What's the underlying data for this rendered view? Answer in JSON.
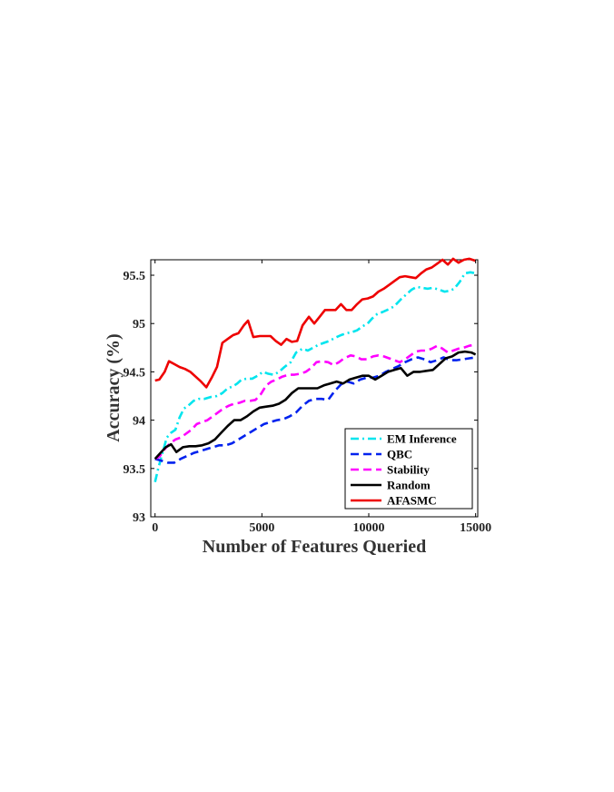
{
  "chart_data": {
    "type": "line",
    "title": "",
    "xlabel": "Number of Features Queried",
    "ylabel": "Accuracy (%)",
    "xlim": [
      -200,
      15100
    ],
    "ylim": [
      93,
      95.66
    ],
    "xticks": [
      0,
      5000,
      10000,
      15000
    ],
    "xtick_labels": [
      "0",
      "5000",
      "10000",
      "15000"
    ],
    "yticks": [
      93,
      93.5,
      94,
      94.5,
      95,
      95.5
    ],
    "ytick_labels": [
      "93",
      "93.5",
      "94",
      "94.5",
      "95",
      "95.5"
    ],
    "grid": false,
    "legend_position": "bottom-right",
    "series": [
      {
        "name": "EM Inference",
        "color": "#00e5ee",
        "dash": "dashdot",
        "x": [
          0,
          150,
          350,
          550,
          750,
          950,
          1150,
          1350,
          1550,
          1800,
          2050,
          2300,
          2600,
          2900,
          3150,
          3400,
          3650,
          3850,
          4050,
          4300,
          4550,
          4800,
          5050,
          5300,
          5550,
          5800,
          6050,
          6350,
          6600,
          6900,
          7150,
          7400,
          7650,
          7900,
          8150,
          8400,
          8700,
          8950,
          9200,
          9450,
          9700,
          9950,
          10150,
          10400,
          10650,
          10950,
          11200,
          11500,
          11750,
          12000,
          12250,
          12500,
          12750,
          13000,
          13300,
          13550,
          13800,
          14000,
          14250,
          14500,
          14750,
          15000
        ],
        "values": [
          93.36,
          93.5,
          93.66,
          93.82,
          93.87,
          93.9,
          94.03,
          94.12,
          94.15,
          94.2,
          94.22,
          94.22,
          94.24,
          94.25,
          94.28,
          94.33,
          94.35,
          94.38,
          94.42,
          94.43,
          94.43,
          94.46,
          94.5,
          94.48,
          94.47,
          94.5,
          94.55,
          94.6,
          94.7,
          94.74,
          94.72,
          94.75,
          94.78,
          94.8,
          94.82,
          94.85,
          94.88,
          94.9,
          94.91,
          94.93,
          94.97,
          95.0,
          95.05,
          95.1,
          95.12,
          95.15,
          95.18,
          95.25,
          95.3,
          95.35,
          95.38,
          95.37,
          95.36,
          95.37,
          95.35,
          95.33,
          95.34,
          95.36,
          95.43,
          95.52,
          95.53,
          95.52
        ]
      },
      {
        "name": "QBC",
        "color": "#0022ee",
        "dash": "dash",
        "x": [
          0,
          300,
          600,
          900,
          1200,
          1500,
          1800,
          2100,
          2400,
          2700,
          3000,
          3300,
          3600,
          3900,
          4200,
          4500,
          4800,
          5100,
          5400,
          5700,
          6000,
          6300,
          6600,
          6900,
          7200,
          7500,
          7800,
          8100,
          8400,
          8700,
          9000,
          9300,
          9600,
          9900,
          10200,
          10500,
          10800,
          11100,
          11400,
          11700,
          12000,
          12300,
          12600,
          12900,
          13200,
          13500,
          13800,
          14100,
          14400,
          14700,
          15000
        ],
        "values": [
          93.6,
          93.58,
          93.56,
          93.56,
          93.6,
          93.63,
          93.66,
          93.68,
          93.7,
          93.72,
          93.74,
          93.74,
          93.76,
          93.8,
          93.84,
          93.88,
          93.92,
          93.96,
          93.98,
          94.0,
          94.01,
          94.04,
          94.08,
          94.15,
          94.2,
          94.22,
          94.22,
          94.21,
          94.3,
          94.37,
          94.4,
          94.38,
          94.42,
          94.44,
          94.44,
          94.46,
          94.5,
          94.53,
          94.56,
          94.6,
          94.63,
          94.65,
          94.63,
          94.6,
          94.62,
          94.65,
          94.62,
          94.62,
          94.63,
          94.64,
          94.65
        ]
      },
      {
        "name": "Stability",
        "color": "#ff00ff",
        "dash": "dash",
        "x": [
          0,
          200,
          450,
          700,
          950,
          1200,
          1450,
          1700,
          1950,
          2200,
          2450,
          2700,
          2950,
          3200,
          3450,
          3700,
          3950,
          4200,
          4450,
          4700,
          4950,
          5200,
          5450,
          5700,
          5950,
          6250,
          6500,
          6800,
          7050,
          7300,
          7550,
          7800,
          8100,
          8350,
          8600,
          8850,
          9150,
          9400,
          9650,
          9900,
          10200,
          10450,
          10700,
          10950,
          11200,
          11450,
          11700,
          11950,
          12200,
          12450,
          12700,
          12950,
          13200,
          13450,
          13700,
          13950,
          14200,
          14450,
          14700,
          14950
        ],
        "values": [
          93.6,
          93.62,
          93.7,
          93.76,
          93.8,
          93.82,
          93.86,
          93.9,
          93.96,
          93.98,
          94.0,
          94.04,
          94.08,
          94.12,
          94.15,
          94.17,
          94.18,
          94.2,
          94.2,
          94.21,
          94.27,
          94.36,
          94.4,
          94.42,
          94.45,
          94.47,
          94.47,
          94.48,
          94.5,
          94.54,
          94.6,
          94.61,
          94.6,
          94.57,
          94.6,
          94.64,
          94.67,
          94.66,
          94.63,
          94.63,
          94.66,
          94.67,
          94.66,
          94.64,
          94.62,
          94.6,
          94.63,
          94.67,
          94.71,
          94.72,
          94.72,
          94.74,
          94.77,
          94.74,
          94.7,
          94.72,
          94.74,
          94.75,
          94.77,
          94.78
        ]
      },
      {
        "name": "Random",
        "color": "#000000",
        "dash": "solid",
        "x": [
          0,
          250,
          500,
          750,
          1000,
          1300,
          1600,
          1900,
          2200,
          2500,
          2800,
          3100,
          3400,
          3700,
          4000,
          4300,
          4600,
          4900,
          5200,
          5500,
          5800,
          6100,
          6400,
          6700,
          7000,
          7300,
          7600,
          7900,
          8200,
          8500,
          8800,
          9100,
          9400,
          9700,
          10000,
          10300,
          10600,
          10900,
          11200,
          11500,
          11800,
          12100,
          12400,
          12700,
          13000,
          13300,
          13600,
          13900,
          14200,
          14500,
          14800,
          15000
        ],
        "values": [
          93.6,
          93.66,
          93.72,
          93.75,
          93.67,
          93.72,
          93.73,
          93.73,
          93.74,
          93.76,
          93.8,
          93.87,
          93.94,
          94.0,
          94.0,
          94.04,
          94.09,
          94.13,
          94.14,
          94.15,
          94.17,
          94.21,
          94.28,
          94.33,
          94.33,
          94.33,
          94.33,
          94.36,
          94.38,
          94.4,
          94.38,
          94.42,
          94.44,
          94.46,
          94.46,
          94.42,
          94.46,
          94.5,
          94.52,
          94.54,
          94.46,
          94.5,
          94.5,
          94.51,
          94.52,
          94.58,
          94.64,
          94.66,
          94.7,
          94.71,
          94.7,
          94.68
        ]
      },
      {
        "name": "AFASMC",
        "color": "#ee0000",
        "dash": "solid",
        "x": [
          0,
          200,
          450,
          650,
          900,
          1150,
          1400,
          1650,
          1900,
          2150,
          2400,
          2650,
          2900,
          3150,
          3400,
          3650,
          3900,
          4150,
          4350,
          4600,
          4900,
          5150,
          5400,
          5650,
          5900,
          6150,
          6400,
          6650,
          6900,
          7200,
          7450,
          7700,
          7950,
          8200,
          8450,
          8700,
          8950,
          9200,
          9450,
          9700,
          9950,
          10200,
          10450,
          10700,
          10950,
          11200,
          11450,
          11700,
          11950,
          12200,
          12450,
          12700,
          12950,
          13200,
          13450,
          13700,
          13950,
          14200,
          14450,
          14700,
          15000
        ],
        "values": [
          94.41,
          94.42,
          94.5,
          94.61,
          94.58,
          94.55,
          94.53,
          94.5,
          94.45,
          94.4,
          94.34,
          94.44,
          94.55,
          94.8,
          94.84,
          94.88,
          94.9,
          94.98,
          95.03,
          94.86,
          94.87,
          94.87,
          94.87,
          94.82,
          94.78,
          94.84,
          94.81,
          94.82,
          94.98,
          95.07,
          95.0,
          95.07,
          95.14,
          95.14,
          95.14,
          95.2,
          95.14,
          95.14,
          95.2,
          95.25,
          95.26,
          95.28,
          95.33,
          95.36,
          95.4,
          95.44,
          95.48,
          95.49,
          95.48,
          95.47,
          95.52,
          95.56,
          95.58,
          95.62,
          95.66,
          95.61,
          95.67,
          95.63,
          95.66,
          95.67,
          95.65
        ]
      }
    ]
  }
}
